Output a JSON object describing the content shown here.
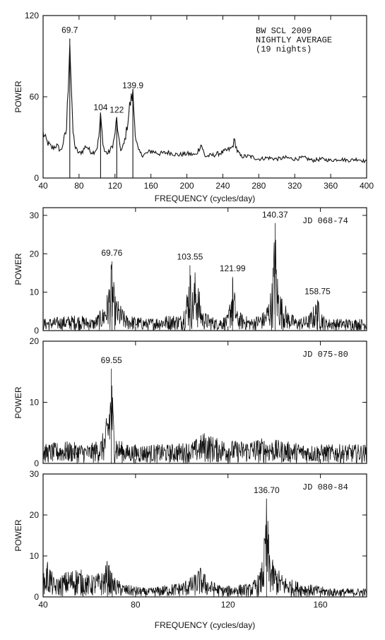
{
  "chart_data": [
    {
      "type": "line",
      "ylabel": "POWER",
      "xlabel": "FREQUENCY (cycles/day)",
      "xlim": [
        40,
        400
      ],
      "ylim": [
        0,
        120
      ],
      "xticks": [
        40,
        80,
        120,
        160,
        200,
        240,
        280,
        320,
        360,
        400
      ],
      "yticks": [
        0,
        60,
        120
      ],
      "info": [
        "BW SCL 2009",
        "NIGHTLY AVERAGE",
        "(19 nights)"
      ],
      "series": [
        {
          "x": [
            40,
            45,
            50,
            55,
            60,
            63,
            66,
            68,
            69.7,
            71,
            73,
            76,
            80,
            84,
            88,
            92,
            96,
            100,
            102,
            104,
            106,
            108,
            112,
            116,
            119,
            122,
            124,
            127,
            130,
            132,
            134,
            136,
            138,
            139.9,
            141,
            143,
            146,
            150,
            155,
            160,
            170,
            180,
            190,
            200,
            210,
            216,
            220,
            230,
            240,
            250,
            253,
            256,
            260,
            270,
            280,
            290,
            300,
            310,
            320,
            330,
            340,
            350,
            360,
            370,
            380,
            390,
            400
          ],
          "y": [
            33,
            26,
            22,
            24,
            20,
            28,
            35,
            70,
            103,
            75,
            35,
            22,
            18,
            20,
            24,
            20,
            19,
            22,
            30,
            46,
            30,
            20,
            18,
            22,
            28,
            44,
            28,
            20,
            25,
            32,
            40,
            52,
            58,
            62,
            50,
            30,
            20,
            17,
            18,
            20,
            18,
            19,
            17,
            18,
            17,
            25,
            16,
            17,
            19,
            22,
            28,
            20,
            16,
            16,
            14,
            15,
            14,
            15,
            14,
            15,
            13,
            14,
            13,
            14,
            13,
            14,
            12
          ]
        }
      ],
      "annotations": [
        {
          "label": "69.7",
          "x": 69.7,
          "y": 103
        },
        {
          "label": "104",
          "x": 104,
          "y": 46
        },
        {
          "label": "122",
          "x": 122,
          "y": 44
        },
        {
          "label": "139.9",
          "x": 139.9,
          "y": 62
        }
      ]
    },
    {
      "type": "line",
      "ylabel": "POWER",
      "xlim": [
        40,
        180
      ],
      "ylim": [
        0,
        32
      ],
      "xticks": [
        40,
        80,
        120,
        160
      ],
      "yticks": [
        0,
        10,
        20,
        30
      ],
      "info": [
        "JD 068-74"
      ],
      "series": [
        {
          "x": [
            40,
            55,
            62,
            66,
            68,
            69.76,
            71,
            73,
            76,
            85,
            95,
            100,
            102,
            103.55,
            104.5,
            106,
            109,
            115,
            120,
            121.99,
            124,
            130,
            136,
            138,
            139,
            140.37,
            141.5,
            143,
            146,
            150,
            155,
            158.75,
            162,
            170,
            180
          ],
          "y": [
            3,
            4,
            3,
            6,
            10,
            18,
            9,
            7,
            4,
            3,
            4,
            4,
            9,
            17,
            10,
            16,
            5,
            3,
            4,
            14,
            5,
            3,
            5,
            9,
            12,
            28,
            14,
            9,
            5,
            3,
            4,
            8,
            3,
            3,
            3
          ]
        }
      ],
      "annotations": [
        {
          "label": "69.76",
          "x": 69.76,
          "y": 18
        },
        {
          "label": "103.55",
          "x": 103.55,
          "y": 17
        },
        {
          "label": "121.99",
          "x": 121.99,
          "y": 14
        },
        {
          "label": "140.37",
          "x": 140.37,
          "y": 28
        },
        {
          "label": "158.75",
          "x": 158.75,
          "y": 8
        }
      ]
    },
    {
      "type": "line",
      "ylabel": "POWER",
      "xlim": [
        40,
        180
      ],
      "ylim": [
        0,
        20
      ],
      "xticks": [
        40,
        80,
        120,
        160
      ],
      "yticks": [
        0,
        10,
        20
      ],
      "info": [
        "JD 075-80"
      ],
      "series": [
        {
          "x": [
            40,
            50,
            60,
            65,
            67,
            68,
            69.55,
            70.5,
            72,
            76,
            85,
            95,
            105,
            110,
            115,
            125,
            135,
            145,
            155,
            165,
            175,
            180
          ],
          "y": [
            3,
            3.5,
            3,
            4,
            6,
            9,
            15.5,
            8,
            4,
            3,
            3,
            3,
            3.5,
            5,
            4,
            3.5,
            4,
            3.5,
            3,
            3,
            3,
            3
          ]
        }
      ],
      "annotations": [
        {
          "label": "69.55",
          "x": 69.55,
          "y": 15.5
        }
      ]
    },
    {
      "type": "line",
      "ylabel": "POWER",
      "xlabel": "FREQUENCY (cycles/day)",
      "xlim": [
        40,
        180
      ],
      "ylim": [
        0,
        30
      ],
      "xticks": [
        40,
        80,
        120,
        160
      ],
      "yticks": [
        0,
        10,
        20,
        30
      ],
      "info": [
        "JD 080-84"
      ],
      "series": [
        {
          "x": [
            40,
            42,
            45,
            50,
            55,
            60,
            66,
            68,
            70,
            75,
            85,
            95,
            100,
            105,
            108,
            112,
            118,
            125,
            130,
            134,
            135.5,
            136.7,
            137.8,
            139,
            141,
            144,
            148,
            155,
            165,
            175,
            180
          ],
          "y": [
            5,
            9,
            4,
            6,
            7,
            5,
            6,
            9,
            5,
            3,
            2,
            3,
            3.5,
            5,
            7,
            4,
            2.5,
            3,
            3,
            6,
            12,
            24,
            13,
            9,
            7,
            5,
            4,
            3,
            2,
            2,
            2
          ]
        }
      ],
      "annotations": [
        {
          "label": "136.70",
          "x": 136.7,
          "y": 24
        }
      ]
    }
  ]
}
